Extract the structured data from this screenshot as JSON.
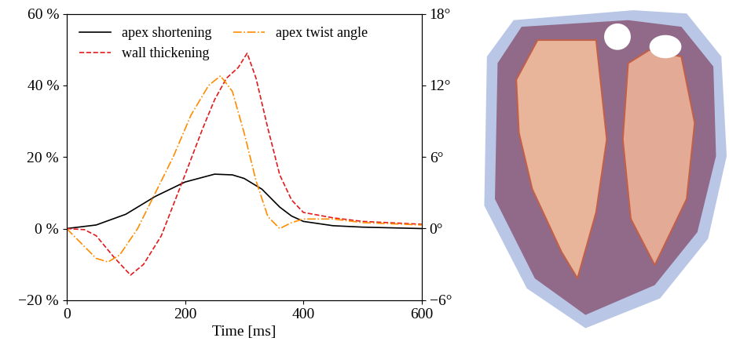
{
  "chart_data": {
    "type": "line",
    "xlabel": "Time [ms]",
    "xlim": [
      0,
      600
    ],
    "xticks": [
      0,
      200,
      400,
      600
    ],
    "ylim": [
      -20,
      60
    ],
    "yticks": [
      {
        "value": -20,
        "label": "−20 %"
      },
      {
        "value": 0,
        "label": "0 %"
      },
      {
        "value": 20,
        "label": "20 %"
      },
      {
        "value": 40,
        "label": "40 %"
      },
      {
        "value": 60,
        "label": "60 %"
      }
    ],
    "y2lim": [
      -6,
      18
    ],
    "y2ticks": [
      {
        "value": -6,
        "label": "−6°"
      },
      {
        "value": 0,
        "label": "0°"
      },
      {
        "value": 6,
        "label": "6°"
      },
      {
        "value": 12,
        "label": "12°"
      },
      {
        "value": 18,
        "label": "18°"
      }
    ],
    "legend": "upper left",
    "series": [
      {
        "name": "apex shortening",
        "color": "#000000",
        "line_style": "solid",
        "x": [
          0,
          50,
          100,
          150,
          200,
          250,
          280,
          300,
          330,
          360,
          380,
          400,
          450,
          500,
          600
        ],
        "values": [
          0,
          1,
          4,
          9,
          13,
          15.2,
          15,
          14,
          11,
          6,
          3.5,
          2,
          0.8,
          0.4,
          0
        ]
      },
      {
        "name": "wall thickening",
        "color": "#e41a1c",
        "line_style": "dashed",
        "x": [
          0,
          30,
          50,
          80,
          108,
          130,
          160,
          200,
          230,
          250,
          270,
          290,
          305,
          320,
          340,
          360,
          380,
          400,
          450,
          500,
          600
        ],
        "values": [
          0,
          -0.3,
          -2,
          -8,
          -13,
          -10,
          -2,
          15,
          28,
          36,
          42,
          45,
          49,
          42,
          28,
          15,
          8,
          4.5,
          3,
          2,
          1.2
        ]
      },
      {
        "name": "apex twist angle",
        "color": "#ff8c00",
        "line_style": "dashdot",
        "axis": "y2",
        "x": [
          0,
          30,
          50,
          70,
          90,
          120,
          150,
          180,
          210,
          240,
          260,
          280,
          300,
          320,
          340,
          360,
          380,
          400,
          450,
          500,
          600
        ],
        "values": [
          0,
          -1.5,
          -2.5,
          -2.8,
          -2.2,
          0,
          3,
          6,
          9.5,
          12,
          12.8,
          11.5,
          8,
          4,
          1,
          0,
          0.5,
          0.8,
          0.8,
          0.5,
          0.3
        ]
      }
    ]
  }
}
